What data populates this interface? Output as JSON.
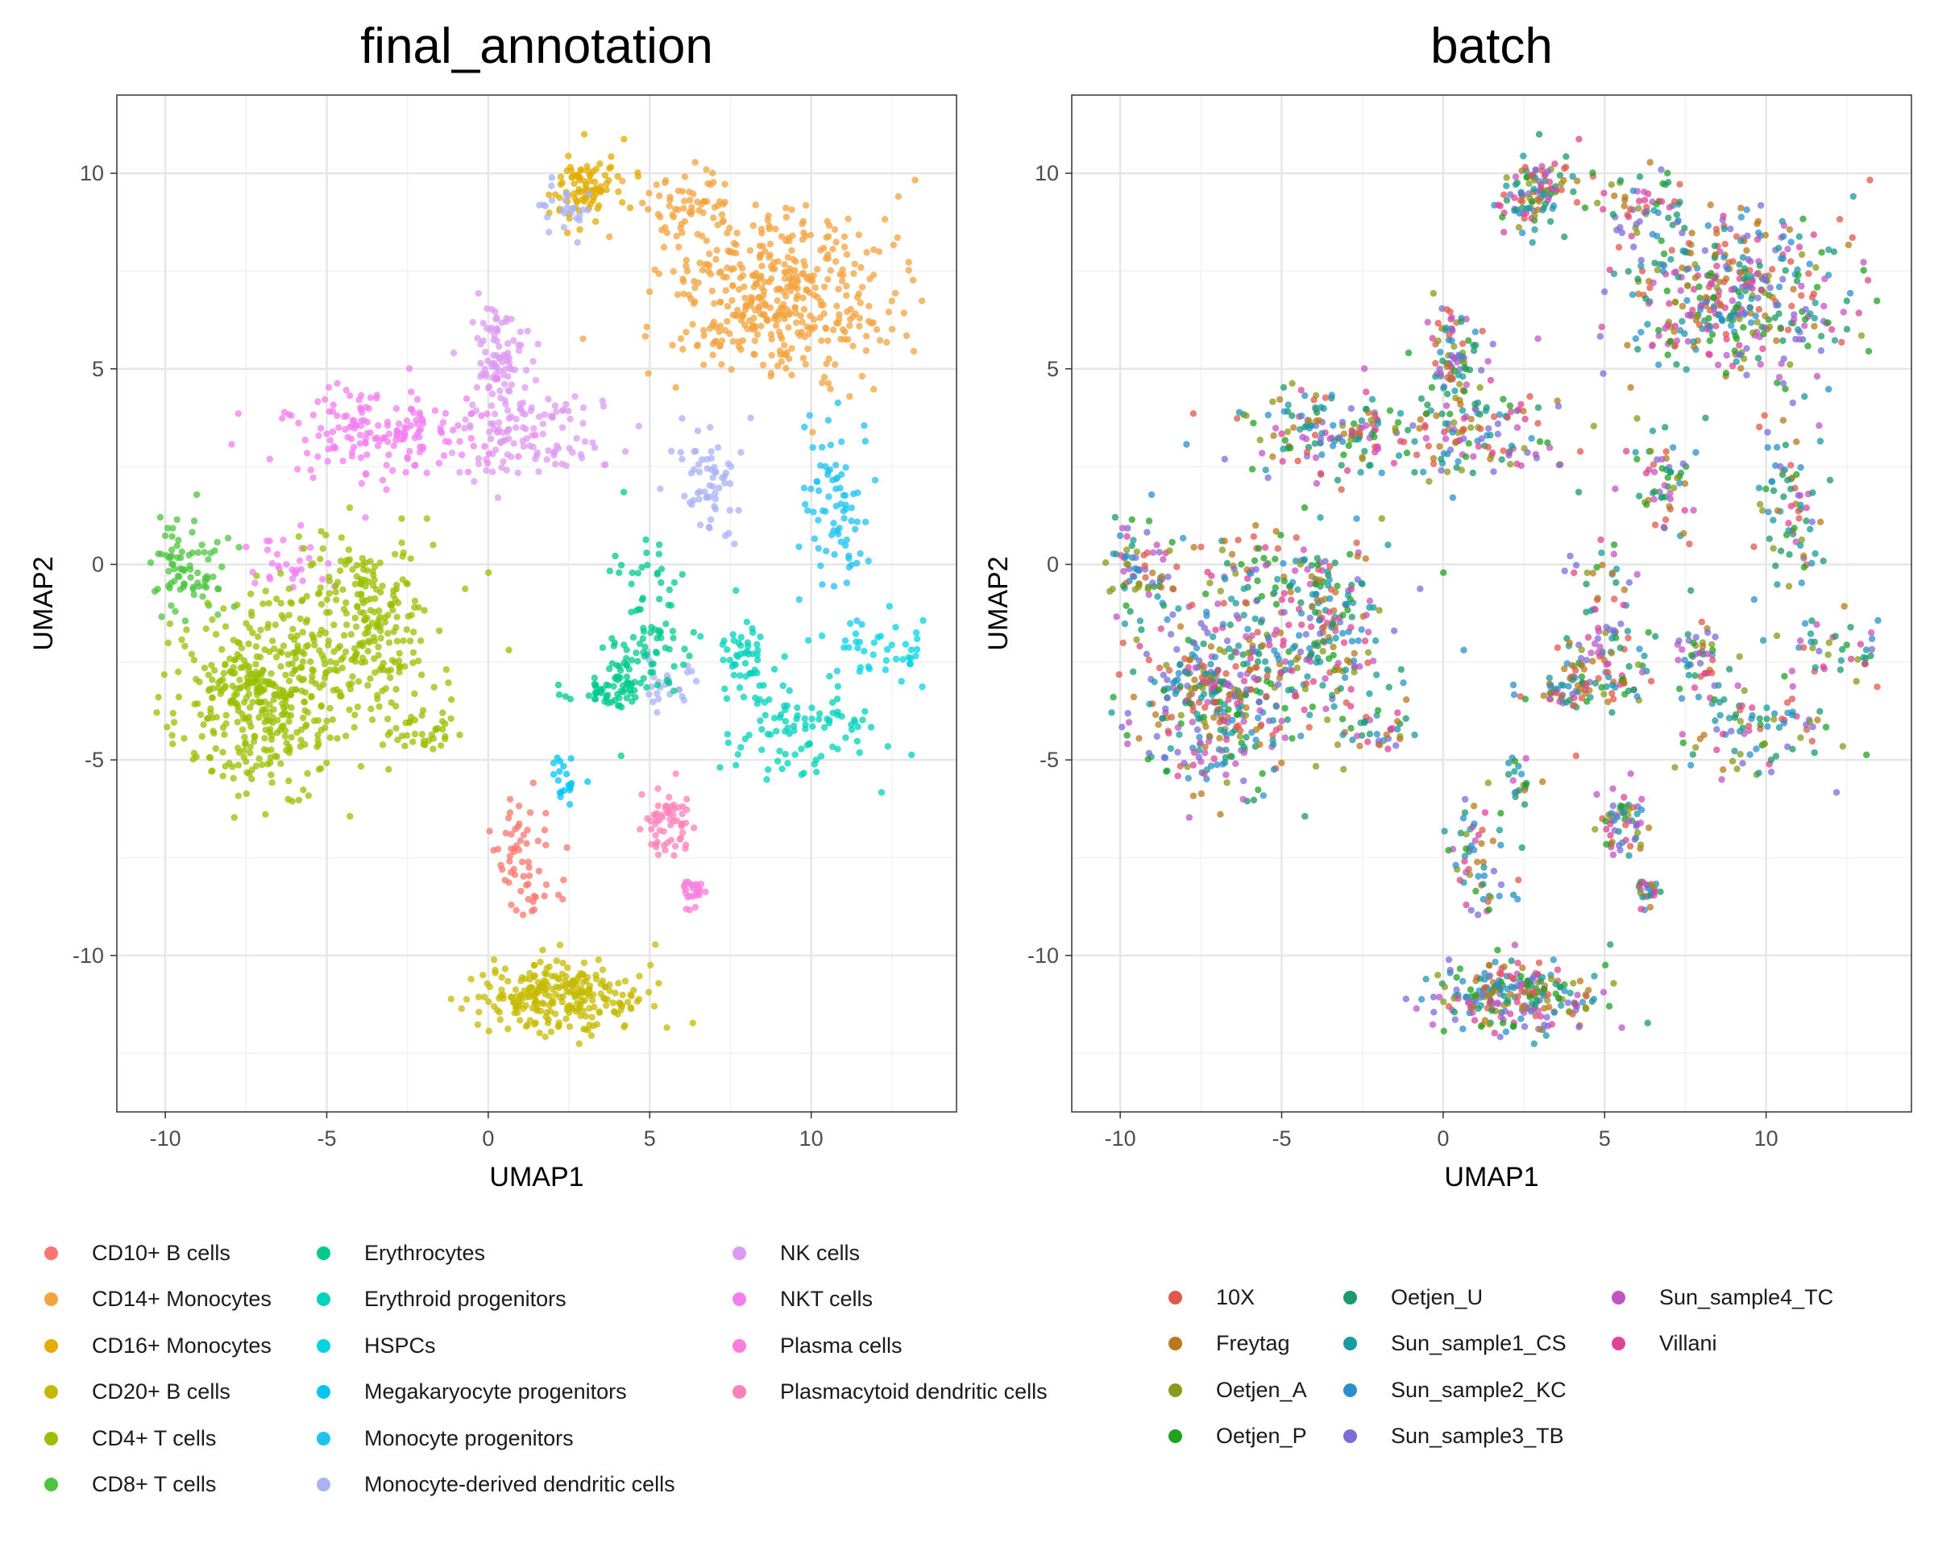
{
  "chart_data": [
    {
      "type": "scatter",
      "title": "final_annotation",
      "xlabel": "UMAP1",
      "ylabel": "UMAP2",
      "xlim": [
        -11.5,
        14.5
      ],
      "ylim": [
        -14,
        12
      ],
      "xticks": [
        -10,
        -5,
        0,
        5,
        10
      ],
      "xtick_labels": [
        "-10",
        "-5",
        "0",
        "5",
        "10"
      ],
      "yticks": [
        -10,
        -5,
        0,
        5,
        10
      ],
      "ytick_labels": [
        "-10",
        "-5",
        "0",
        "5",
        "10"
      ],
      "grid": true,
      "legend_position": "bottom",
      "legend_entries": [
        {
          "label": "CD10+ B cells",
          "color": "#F8766D"
        },
        {
          "label": "CD14+ Monocytes",
          "color": "#F3A33F"
        },
        {
          "label": "CD16+ Monocytes",
          "color": "#E2AC00"
        },
        {
          "label": "CD20+ B cells",
          "color": "#C5B900"
        },
        {
          "label": "CD4+ T cells",
          "color": "#9ABF00"
        },
        {
          "label": "CD8+ T cells",
          "color": "#4CC43F"
        },
        {
          "label": "Erythrocytes",
          "color": "#00C98C"
        },
        {
          "label": "Erythroid progenitors",
          "color": "#00D2BC"
        },
        {
          "label": "HSPCs",
          "color": "#00D4E2"
        },
        {
          "label": "Megakaryocyte progenitors",
          "color": "#00C4F5"
        },
        {
          "label": "Monocyte progenitors",
          "color": "#1EC2F0"
        },
        {
          "label": "Monocyte-derived dendritic cells",
          "color": "#A8B2F5"
        },
        {
          "label": "NK cells",
          "color": "#DE9AF2"
        },
        {
          "label": "NKT cells",
          "color": "#F27DF0"
        },
        {
          "label": "Plasma cells",
          "color": "#FA7EDB"
        },
        {
          "label": "Plasmacytoid dendritic cells",
          "color": "#FF80B8"
        }
      ],
      "clusters": [
        {
          "label": "CD14+ Monocytes",
          "cx": 9.0,
          "cy": 6.9,
          "sx": 1.7,
          "sy": 1.05,
          "n": 420
        },
        {
          "label": "CD14+ Monocytes",
          "cx": 6.3,
          "cy": 9.0,
          "sx": 0.7,
          "sy": 0.6,
          "n": 60
        },
        {
          "label": "CD16+ Monocytes",
          "cx": 2.9,
          "cy": 9.6,
          "sx": 0.55,
          "sy": 0.45,
          "n": 90
        },
        {
          "label": "Monocyte-derived dendritic cells",
          "cx": 2.3,
          "cy": 9.1,
          "sx": 0.35,
          "sy": 0.35,
          "n": 25
        },
        {
          "label": "Monocyte-derived dendritic cells",
          "cx": 6.8,
          "cy": 2.0,
          "sx": 0.6,
          "sy": 0.7,
          "n": 60
        },
        {
          "label": "Monocyte-derived dendritic cells",
          "cx": 5.8,
          "cy": -3.0,
          "sx": 0.5,
          "sy": 0.3,
          "n": 25
        },
        {
          "label": "Monocyte progenitors",
          "cx": 10.8,
          "cy": 1.5,
          "sx": 0.6,
          "sy": 1.3,
          "n": 80
        },
        {
          "label": "HSPCs",
          "cx": 12.2,
          "cy": -2.2,
          "sx": 0.8,
          "sy": 0.4,
          "n": 40
        },
        {
          "label": "Erythroid progenitors",
          "cx": 9.6,
          "cy": -4.3,
          "sx": 1.2,
          "sy": 0.6,
          "n": 90
        },
        {
          "label": "Erythroid progenitors",
          "cx": 7.9,
          "cy": -2.4,
          "sx": 0.45,
          "sy": 0.6,
          "n": 50
        },
        {
          "label": "Erythrocytes",
          "cx": 5.0,
          "cy": -1.3,
          "sx": 0.5,
          "sy": 1.0,
          "n": 70
        },
        {
          "label": "Erythrocytes",
          "cx": 4.2,
          "cy": -2.9,
          "sx": 0.35,
          "sy": 0.5,
          "n": 45
        },
        {
          "label": "Erythrocytes",
          "cx": 3.2,
          "cy": -3.2,
          "sx": 0.7,
          "sy": 0.25,
          "n": 30
        },
        {
          "label": "NK cells",
          "cx": 0.3,
          "cy": 5.2,
          "sx": 0.5,
          "sy": 0.8,
          "n": 90
        },
        {
          "label": "NK cells",
          "cx": 1.4,
          "cy": 3.3,
          "sx": 1.1,
          "sy": 0.6,
          "n": 110
        },
        {
          "label": "NKT cells",
          "cx": -3.2,
          "cy": 3.4,
          "sx": 1.6,
          "sy": 0.55,
          "n": 170
        },
        {
          "label": "NKT cells",
          "cx": -6.2,
          "cy": 0.1,
          "sx": 0.6,
          "sy": 0.4,
          "n": 30
        },
        {
          "label": "CD8+ T cells",
          "cx": -9.3,
          "cy": -0.1,
          "sx": 0.6,
          "sy": 0.65,
          "n": 80
        },
        {
          "label": "CD4+ T cells",
          "cx": -7.1,
          "cy": -3.4,
          "sx": 1.2,
          "sy": 1.2,
          "n": 380
        },
        {
          "label": "CD4+ T cells",
          "cx": -3.9,
          "cy": -1.6,
          "sx": 1.2,
          "sy": 1.1,
          "n": 260
        },
        {
          "label": "CD4+ T cells",
          "cx": -2.2,
          "cy": -4.2,
          "sx": 0.6,
          "sy": 0.4,
          "n": 40
        },
        {
          "label": "CD20+ B cells",
          "cx": 2.2,
          "cy": -11.0,
          "sx": 1.3,
          "sy": 0.45,
          "n": 260
        },
        {
          "label": "CD10+ B cells",
          "cx": 1.0,
          "cy": -7.6,
          "sx": 0.5,
          "sy": 0.9,
          "n": 60
        },
        {
          "label": "Plasma cells",
          "cx": 6.3,
          "cy": -8.4,
          "sx": 0.25,
          "sy": 0.2,
          "n": 25
        },
        {
          "label": "Plasmacytoid dendritic cells",
          "cx": 5.5,
          "cy": -6.7,
          "sx": 0.35,
          "sy": 0.45,
          "n": 60
        },
        {
          "label": "Megakaryocyte progenitors",
          "cx": 2.4,
          "cy": -5.4,
          "sx": 0.3,
          "sy": 0.4,
          "n": 20
        }
      ]
    },
    {
      "type": "scatter",
      "title": "batch",
      "xlabel": "UMAP1",
      "ylabel": "UMAP2",
      "xlim": [
        -11.5,
        14.5
      ],
      "ylim": [
        -14,
        12
      ],
      "xticks": [
        -10,
        -5,
        0,
        5,
        10
      ],
      "xtick_labels": [
        "-10",
        "-5",
        "0",
        "5",
        "10"
      ],
      "yticks": [
        -10,
        -5,
        0,
        5,
        10
      ],
      "ytick_labels": [
        "-10",
        "-5",
        "0",
        "5",
        "10"
      ],
      "grid": true,
      "legend_position": "bottom",
      "legend_entries": [
        {
          "label": "10X",
          "color": "#E0584A"
        },
        {
          "label": "Freytag",
          "color": "#B87A1A"
        },
        {
          "label": "Oetjen_A",
          "color": "#8A9A1A"
        },
        {
          "label": "Oetjen_P",
          "color": "#1FA21F"
        },
        {
          "label": "Oetjen_U",
          "color": "#1A9A6A"
        },
        {
          "label": "Sun_sample1_CS",
          "color": "#1A9BA0"
        },
        {
          "label": "Sun_sample2_KC",
          "color": "#2A8FCC"
        },
        {
          "label": "Sun_sample3_TB",
          "color": "#7B6CD8"
        },
        {
          "label": "Sun_sample4_TC",
          "color": "#C253C4"
        },
        {
          "label": "Villani",
          "color": "#DE4496"
        }
      ]
    }
  ]
}
